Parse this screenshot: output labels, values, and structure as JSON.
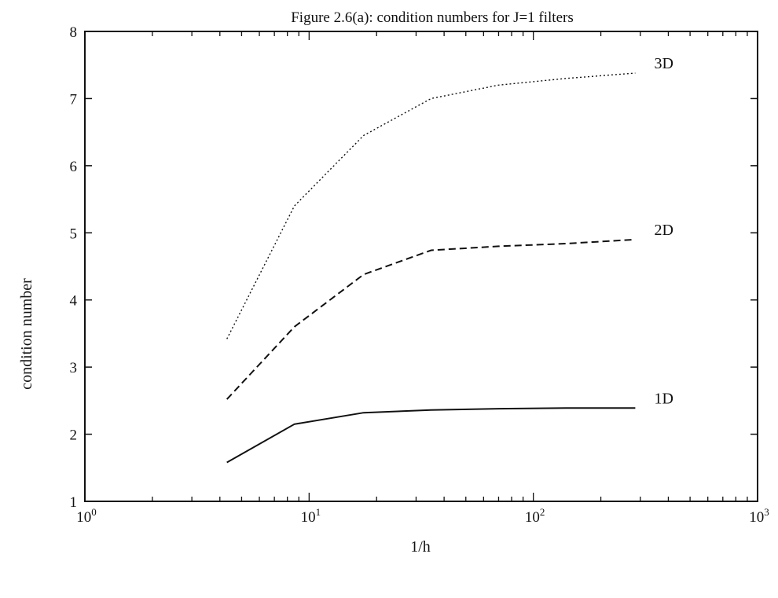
{
  "chart_data": {
    "type": "line",
    "title": "Figure 2.6(a): condition numbers for J=1 filters",
    "xlabel": "1/h",
    "ylabel": "condition number",
    "xscale": "log",
    "xlim": [
      1,
      1000
    ],
    "ylim": [
      1,
      8
    ],
    "x_ticks": [
      {
        "base": "10",
        "exp": "0"
      },
      {
        "base": "10",
        "exp": "1"
      },
      {
        "base": "10",
        "exp": "2"
      },
      {
        "base": "10",
        "exp": "3"
      }
    ],
    "y_ticks": [
      "1",
      "2",
      "3",
      "4",
      "5",
      "6",
      "7",
      "8"
    ],
    "grid": false,
    "legend": "inline labels at line ends",
    "series": [
      {
        "name": "1D",
        "style": "solid",
        "x": [
          4.3,
          8.6,
          17.5,
          35,
          70,
          140,
          285
        ],
        "y": [
          1.58,
          2.15,
          2.32,
          2.36,
          2.38,
          2.39,
          2.39
        ]
      },
      {
        "name": "2D",
        "style": "dashed",
        "x": [
          4.3,
          8.6,
          17.5,
          35,
          70,
          140,
          285
        ],
        "y": [
          2.52,
          3.6,
          4.38,
          4.74,
          4.8,
          4.84,
          4.9
        ]
      },
      {
        "name": "3D",
        "style": "dotted",
        "x": [
          4.3,
          8.6,
          17.5,
          35,
          70,
          140,
          285
        ],
        "y": [
          3.42,
          5.4,
          6.45,
          7.0,
          7.2,
          7.3,
          7.38
        ]
      }
    ]
  }
}
